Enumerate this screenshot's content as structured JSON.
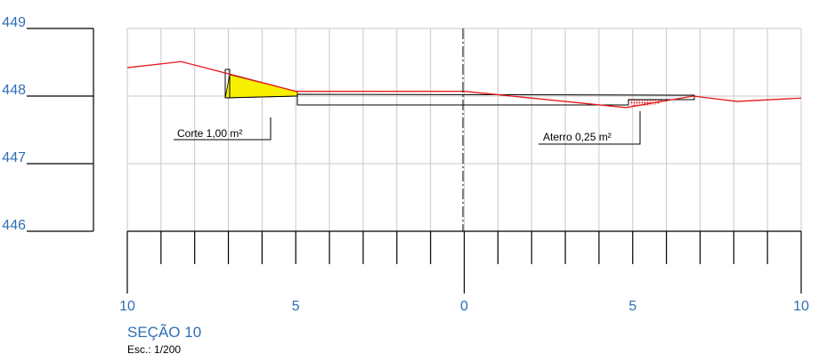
{
  "colors": {
    "grid": "#c8c8c8",
    "terrain": "#e31a1c",
    "label_blue": "#2f6eb5",
    "cut_fill": "#f7f000",
    "embankment_fill": "#e31a1c"
  },
  "elevation_labels": [
    "449",
    "448",
    "447",
    "446"
  ],
  "elevation_values": [
    449,
    448,
    447,
    446
  ],
  "offset_labels": [
    "10",
    "5",
    "0",
    "5",
    "10"
  ],
  "offset_values": [
    -10,
    -5,
    0,
    5,
    10
  ],
  "cut_annotation": "Corte 1,00 m²",
  "fill_annotation": "Aterro 0,25 m²",
  "section_title": "SEÇÃO 10",
  "scale_text": "Esc.: 1/200",
  "terrain_profile": [
    [
      -10,
      448.42
    ],
    [
      -8.4,
      448.51
    ],
    [
      -5,
      448.07
    ],
    [
      0,
      448.07
    ],
    [
      4.8,
      447.83
    ],
    [
      6.8,
      448.0
    ],
    [
      8.1,
      447.92
    ],
    [
      10,
      447.97
    ]
  ],
  "cut_area_m2": 1.0,
  "fill_area_m2": 0.25
}
